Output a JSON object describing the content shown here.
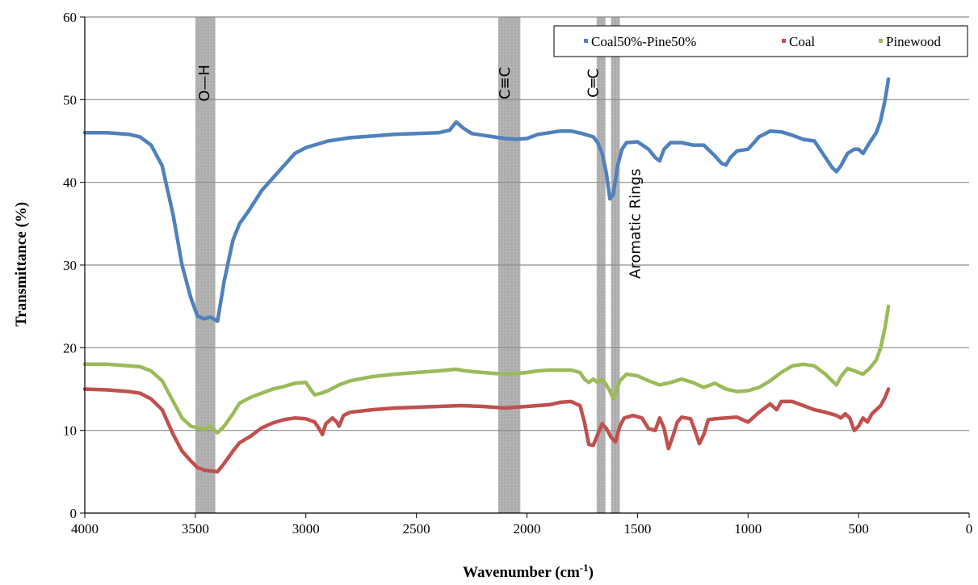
{
  "chart_data": {
    "type": "line",
    "title": "",
    "xlabel": "Wavenumber (cm",
    "xlabel_sup": "-1",
    "xlabel_close": ")",
    "ylabel": "Transmittance (%)",
    "xlim": [
      4000,
      0
    ],
    "ylim": [
      0,
      60
    ],
    "x_reversed": true,
    "xticks": [
      4000,
      3500,
      3000,
      2500,
      2000,
      1500,
      1000,
      500,
      0
    ],
    "yticks": [
      0,
      10,
      20,
      30,
      40,
      50,
      60
    ],
    "grid": "horizontal",
    "legend_position": "top-right",
    "colors": {
      "Coal50%-Pine50%": "#4f81bd",
      "Coal": "#c0504d",
      "Pinewood": "#9bbb59"
    },
    "bands": [
      {
        "from": 3500,
        "to": 3410,
        "label": "O—H",
        "label_at": 3460,
        "label_y": 52
      },
      {
        "from": 2130,
        "to": 2030,
        "label": "C≡C",
        "label_at": 2100,
        "label_y": 52
      },
      {
        "from": 1685,
        "to": 1645,
        "label": "C═C",
        "label_at": 1700,
        "label_y": 52
      },
      {
        "from": 1620,
        "to": 1580,
        "label": "Aromatic Rings",
        "label_at": 1510,
        "label_y": 35
      }
    ],
    "series": [
      {
        "name": "Coal50%-Pine50%",
        "x": [
          4000,
          3900,
          3800,
          3750,
          3700,
          3650,
          3600,
          3560,
          3520,
          3490,
          3460,
          3430,
          3400,
          3370,
          3330,
          3300,
          3260,
          3200,
          3150,
          3100,
          3050,
          3000,
          2950,
          2900,
          2850,
          2800,
          2700,
          2600,
          2500,
          2400,
          2350,
          2320,
          2290,
          2250,
          2200,
          2150,
          2100,
          2050,
          2000,
          1950,
          1900,
          1850,
          1800,
          1750,
          1700,
          1680,
          1660,
          1640,
          1625,
          1610,
          1590,
          1570,
          1550,
          1500,
          1450,
          1420,
          1400,
          1380,
          1350,
          1300,
          1250,
          1200,
          1150,
          1120,
          1100,
          1080,
          1050,
          1000,
          950,
          900,
          850,
          800,
          750,
          700,
          650,
          620,
          600,
          580,
          550,
          520,
          500,
          480,
          450,
          420,
          400,
          380,
          365
        ],
        "values": [
          46,
          46,
          45.8,
          45.5,
          44.5,
          42,
          36,
          30,
          26,
          23.8,
          23.5,
          23.7,
          23.2,
          28,
          33,
          35,
          36.5,
          39,
          40.5,
          42,
          43.5,
          44.2,
          44.6,
          45,
          45.2,
          45.4,
          45.6,
          45.8,
          45.9,
          46,
          46.3,
          47.3,
          46.6,
          45.9,
          45.7,
          45.5,
          45.3,
          45.2,
          45.3,
          45.8,
          46,
          46.2,
          46.2,
          45.9,
          45.5,
          44.8,
          43.5,
          41,
          38,
          38.5,
          42,
          44,
          44.8,
          44.9,
          44,
          43,
          42.6,
          44,
          44.8,
          44.8,
          44.5,
          44.5,
          43.2,
          42.3,
          42.1,
          43,
          43.8,
          44,
          45.5,
          46.2,
          46.1,
          45.7,
          45.2,
          45,
          43,
          41.8,
          41.3,
          42,
          43.5,
          44,
          44,
          43.5,
          44.8,
          46,
          47.5,
          50,
          52.5
        ]
      },
      {
        "name": "Coal",
        "x": [
          4000,
          3900,
          3800,
          3750,
          3700,
          3650,
          3600,
          3560,
          3520,
          3490,
          3460,
          3430,
          3400,
          3370,
          3330,
          3300,
          3250,
          3200,
          3150,
          3100,
          3050,
          3000,
          2960,
          2940,
          2925,
          2910,
          2880,
          2860,
          2850,
          2830,
          2800,
          2700,
          2600,
          2500,
          2400,
          2300,
          2200,
          2100,
          2050,
          2000,
          1900,
          1850,
          1800,
          1760,
          1740,
          1720,
          1700,
          1680,
          1660,
          1640,
          1620,
          1600,
          1580,
          1560,
          1520,
          1480,
          1450,
          1420,
          1400,
          1380,
          1360,
          1340,
          1320,
          1300,
          1260,
          1240,
          1220,
          1200,
          1180,
          1150,
          1100,
          1050,
          1000,
          950,
          900,
          870,
          850,
          800,
          750,
          700,
          650,
          600,
          580,
          560,
          540,
          520,
          500,
          480,
          460,
          440,
          420,
          400,
          380,
          365
        ],
        "values": [
          15,
          14.9,
          14.7,
          14.5,
          13.8,
          12.5,
          9.5,
          7.5,
          6.3,
          5.5,
          5.2,
          5.1,
          5.0,
          6,
          7.5,
          8.5,
          9.3,
          10.3,
          10.9,
          11.3,
          11.5,
          11.4,
          11,
          10.2,
          9.5,
          10.8,
          11.5,
          11,
          10.5,
          11.8,
          12.2,
          12.5,
          12.7,
          12.8,
          12.9,
          13.0,
          12.9,
          12.7,
          12.8,
          12.9,
          13.1,
          13.4,
          13.5,
          13.0,
          11,
          8.3,
          8.2,
          9.5,
          10.8,
          10.2,
          9.2,
          8.6,
          10.5,
          11.5,
          11.8,
          11.5,
          10.2,
          10,
          11.5,
          10.3,
          7.8,
          9.3,
          11,
          11.6,
          11.4,
          10,
          8.4,
          9.5,
          11.3,
          11.4,
          11.5,
          11.6,
          11.0,
          12.2,
          13.2,
          12.5,
          13.5,
          13.5,
          13.0,
          12.5,
          12.2,
          11.8,
          11.5,
          12,
          11.5,
          10,
          10.5,
          11.5,
          11,
          12,
          12.5,
          13,
          14,
          15
        ]
      },
      {
        "name": "Pinewood",
        "x": [
          4000,
          3900,
          3800,
          3750,
          3700,
          3650,
          3600,
          3560,
          3520,
          3490,
          3460,
          3430,
          3400,
          3370,
          3330,
          3300,
          3250,
          3200,
          3150,
          3100,
          3050,
          3000,
          2980,
          2960,
          2930,
          2900,
          2850,
          2800,
          2700,
          2600,
          2500,
          2400,
          2320,
          2280,
          2200,
          2100,
          2050,
          2000,
          1950,
          1900,
          1800,
          1760,
          1740,
          1720,
          1700,
          1680,
          1660,
          1640,
          1620,
          1610,
          1600,
          1580,
          1550,
          1500,
          1450,
          1400,
          1350,
          1300,
          1250,
          1200,
          1150,
          1100,
          1050,
          1000,
          950,
          900,
          850,
          800,
          750,
          700,
          650,
          620,
          600,
          580,
          550,
          500,
          480,
          450,
          420,
          400,
          380,
          365
        ],
        "values": [
          18,
          18,
          17.8,
          17.7,
          17.2,
          16,
          13.5,
          11.5,
          10.5,
          10.3,
          10.2,
          10.5,
          9.7,
          10.5,
          12,
          13.3,
          14,
          14.5,
          15,
          15.3,
          15.7,
          15.8,
          15,
          14.3,
          14.5,
          14.8,
          15.5,
          16,
          16.5,
          16.8,
          17,
          17.2,
          17.4,
          17.2,
          17,
          16.8,
          16.9,
          17,
          17.2,
          17.3,
          17.3,
          17,
          16.2,
          15.8,
          16.2,
          15.8,
          16.2,
          15.5,
          14.5,
          13.8,
          14.5,
          16,
          16.8,
          16.6,
          16,
          15.5,
          15.8,
          16.2,
          15.8,
          15.2,
          15.7,
          15,
          14.7,
          14.8,
          15.2,
          16,
          17,
          17.8,
          18,
          17.8,
          16.8,
          16,
          15.5,
          16.5,
          17.5,
          17,
          16.8,
          17.5,
          18.5,
          20,
          22.5,
          25
        ]
      }
    ]
  }
}
